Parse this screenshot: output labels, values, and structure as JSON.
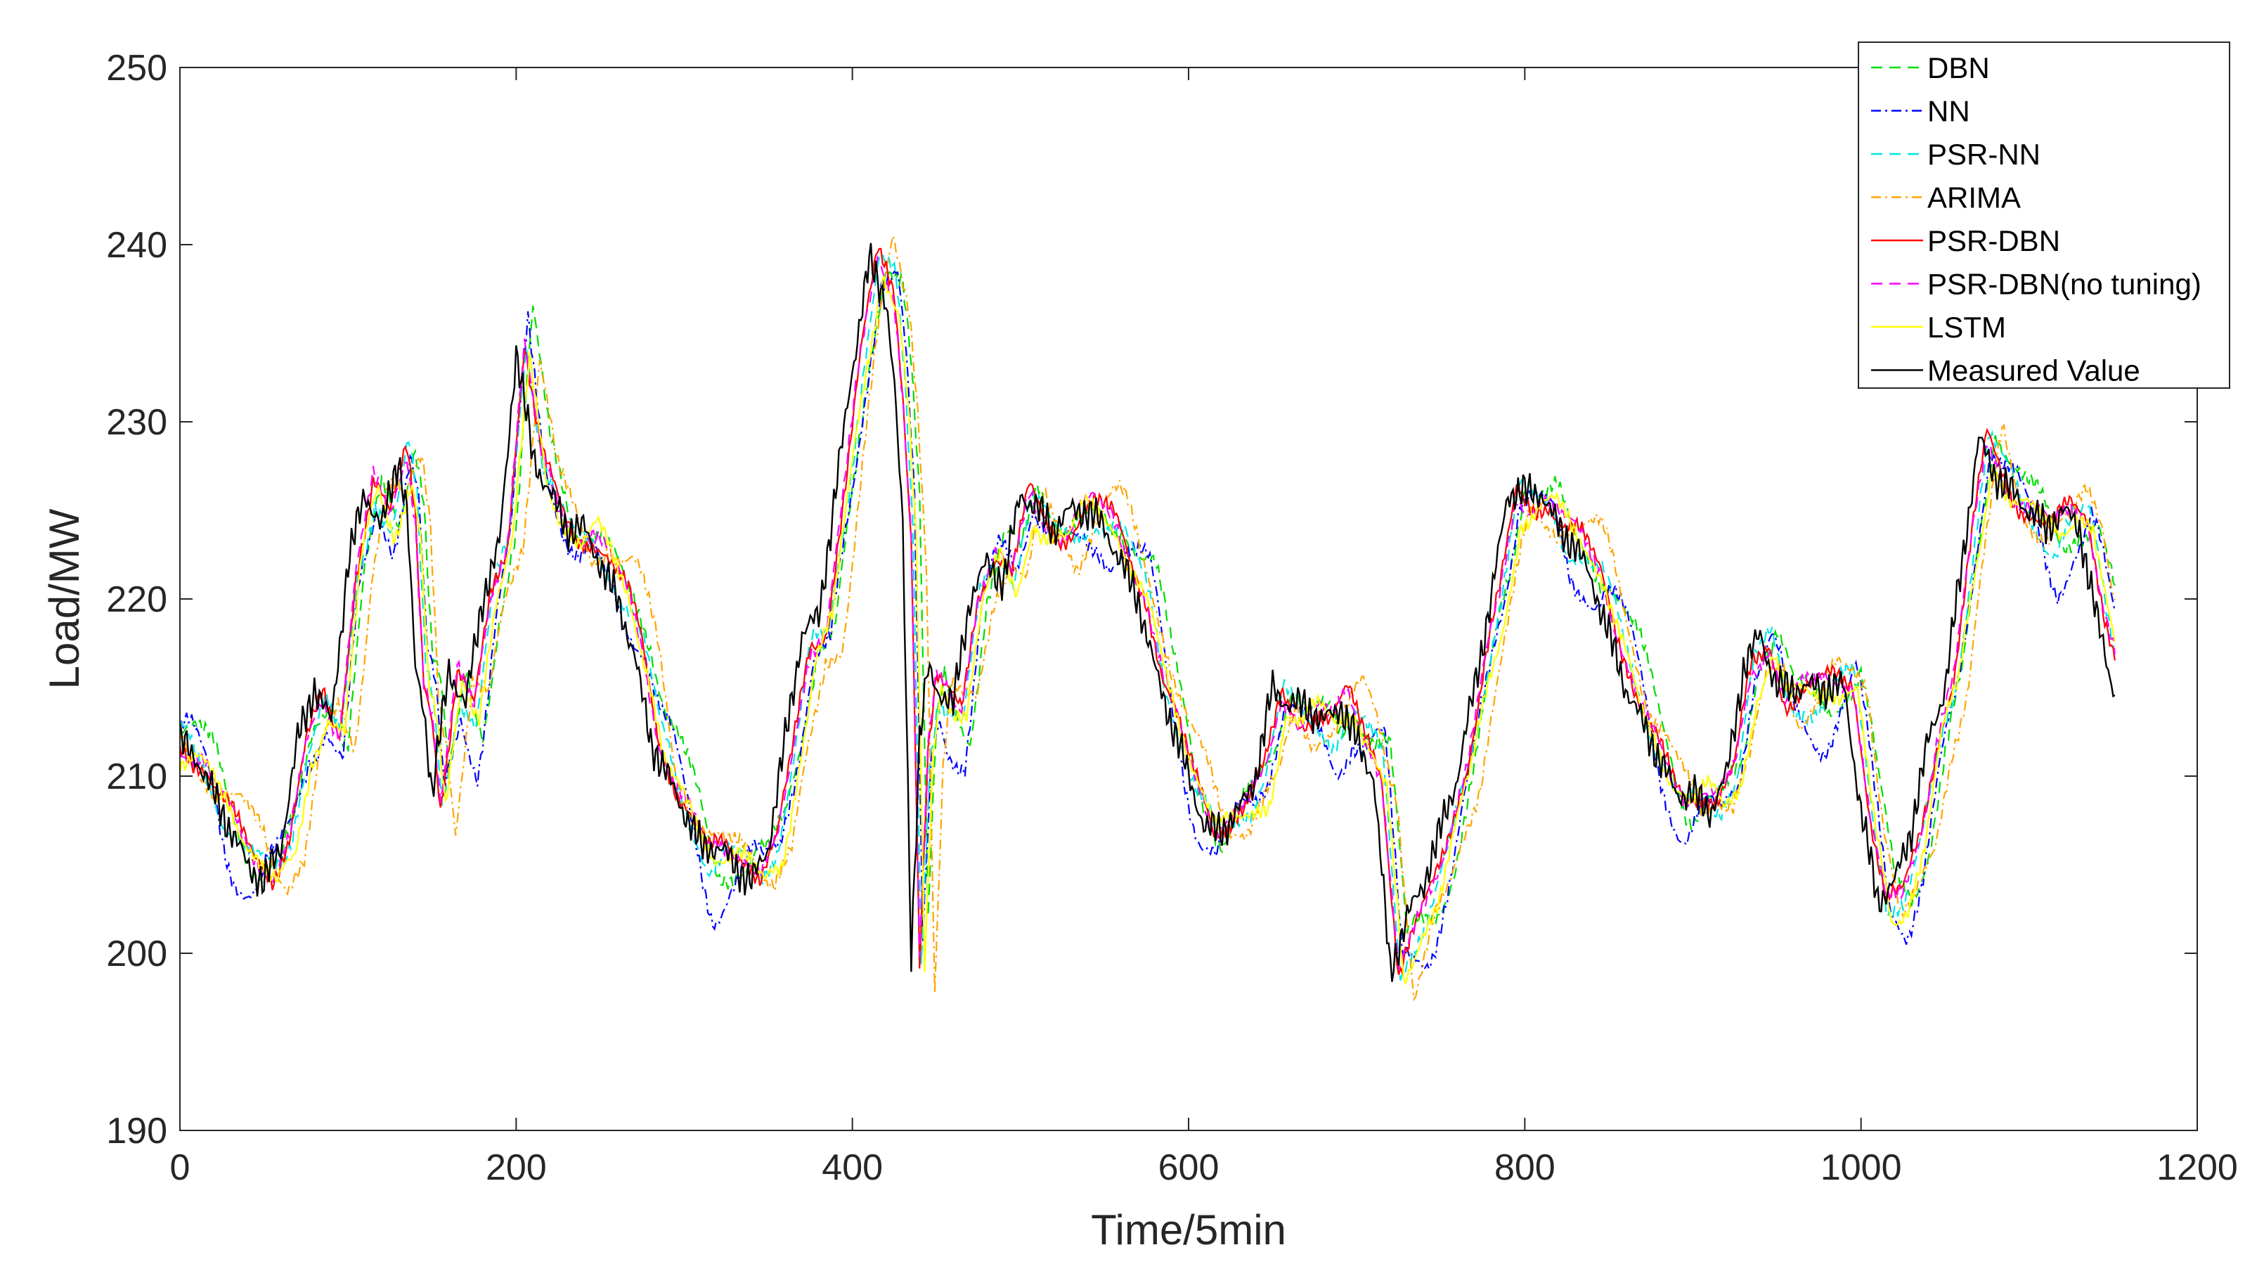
{
  "chart_data": {
    "type": "line",
    "title": "",
    "xlabel": "Time/5min",
    "ylabel": "Load/MW",
    "xlim": [
      0,
      1200
    ],
    "ylim": [
      190,
      250
    ],
    "xticks": [
      0,
      200,
      400,
      600,
      800,
      1000,
      1200
    ],
    "yticks": [
      190,
      200,
      210,
      220,
      230,
      240,
      250
    ],
    "xtick_labels": [
      "0",
      "200",
      "400",
      "600",
      "800",
      "1000",
      "1200"
    ],
    "ytick_labels": [
      "190",
      "200",
      "210",
      "220",
      "230",
      "240",
      "250"
    ],
    "grid": false,
    "legend_position": "top-right",
    "measured": {
      "name": "Measured Value",
      "color": "#000000",
      "x": [
        0,
        10,
        20,
        30,
        40,
        50,
        60,
        70,
        80,
        90,
        100,
        110,
        120,
        130,
        135,
        140,
        145,
        150,
        160,
        170,
        180,
        190,
        200,
        210,
        220,
        230,
        240,
        250,
        260,
        270,
        280,
        290,
        300,
        310,
        320,
        330,
        340,
        350,
        360,
        370,
        380,
        390,
        400,
        410,
        420,
        425,
        430,
        435,
        440,
        445,
        450,
        460,
        470,
        480,
        490,
        500,
        510,
        520,
        530,
        540,
        550,
        560,
        570,
        580,
        590,
        600,
        610,
        620,
        630,
        640,
        650,
        660,
        670,
        680,
        690,
        700,
        710,
        720,
        730,
        740,
        750,
        760,
        770,
        780,
        790,
        800,
        810,
        820,
        830,
        840,
        850,
        860,
        870,
        880,
        890,
        900,
        910,
        920,
        930,
        940,
        950,
        960,
        970,
        980,
        990,
        1000,
        1010,
        1020,
        1030,
        1040,
        1050,
        1060,
        1070,
        1080,
        1090,
        1100,
        1110,
        1120,
        1130,
        1140,
        1150
      ],
      "y": [
        212,
        211,
        209,
        207,
        205,
        204,
        206,
        212,
        215,
        213,
        222,
        226,
        224,
        228,
        225,
        216,
        214,
        209,
        216,
        214,
        220,
        223,
        234,
        228,
        226,
        224,
        224,
        222,
        220,
        217,
        212,
        210,
        208,
        206,
        206,
        205,
        204,
        206,
        212,
        218,
        219,
        226,
        233,
        239,
        237,
        232,
        224,
        200,
        212,
        216,
        215,
        214,
        220,
        222,
        221,
        226,
        225,
        224,
        225,
        225,
        224,
        222,
        220,
        216,
        213,
        210,
        207,
        207,
        208,
        210,
        215,
        214,
        214,
        213,
        214,
        212,
        210,
        199,
        202,
        204,
        207,
        210,
        215,
        220,
        226,
        226,
        226,
        224,
        223,
        221,
        218,
        215,
        213,
        211,
        209,
        209,
        208,
        210,
        216,
        218,
        215,
        215,
        215,
        215,
        215,
        208,
        203,
        204,
        207,
        212,
        215,
        222,
        229,
        227,
        226,
        225,
        224,
        225,
        224,
        219,
        215
      ]
    },
    "series": [
      {
        "name": "DBN",
        "color": "#00dd00",
        "dash": "16,10",
        "offset": 10,
        "amp": 2.4,
        "phase": 0.3,
        "bias": 0.2
      },
      {
        "name": "NN",
        "color": "#0000ff",
        "dash": "14,6,3,6",
        "offset": 7,
        "amp": 3.4,
        "phase": 1.1,
        "bias": -0.9
      },
      {
        "name": "PSR-NN",
        "color": "#00e5e5",
        "dash": "16,10",
        "offset": 6,
        "amp": 1.6,
        "phase": 2.0,
        "bias": -0.3
      },
      {
        "name": "ARIMA",
        "color": "#ffa500",
        "dash": "14,6,3,6",
        "offset": 14,
        "amp": 2.2,
        "phase": 2.7,
        "bias": -0.4
      },
      {
        "name": "PSR-DBN",
        "color": "#ff0000",
        "dash": "",
        "offset": 5,
        "amp": 1.2,
        "phase": 3.5,
        "bias": 0.0
      },
      {
        "name": "PSR-DBN(no tuning)",
        "color": "#ff00ff",
        "dash": "16,10",
        "offset": 5,
        "amp": 1.1,
        "phase": 4.2,
        "bias": 0.0
      },
      {
        "name": "LSTM",
        "color": "#ffff00",
        "dash": "",
        "offset": 8,
        "amp": 1.4,
        "phase": 5.0,
        "bias": -0.6
      }
    ]
  }
}
